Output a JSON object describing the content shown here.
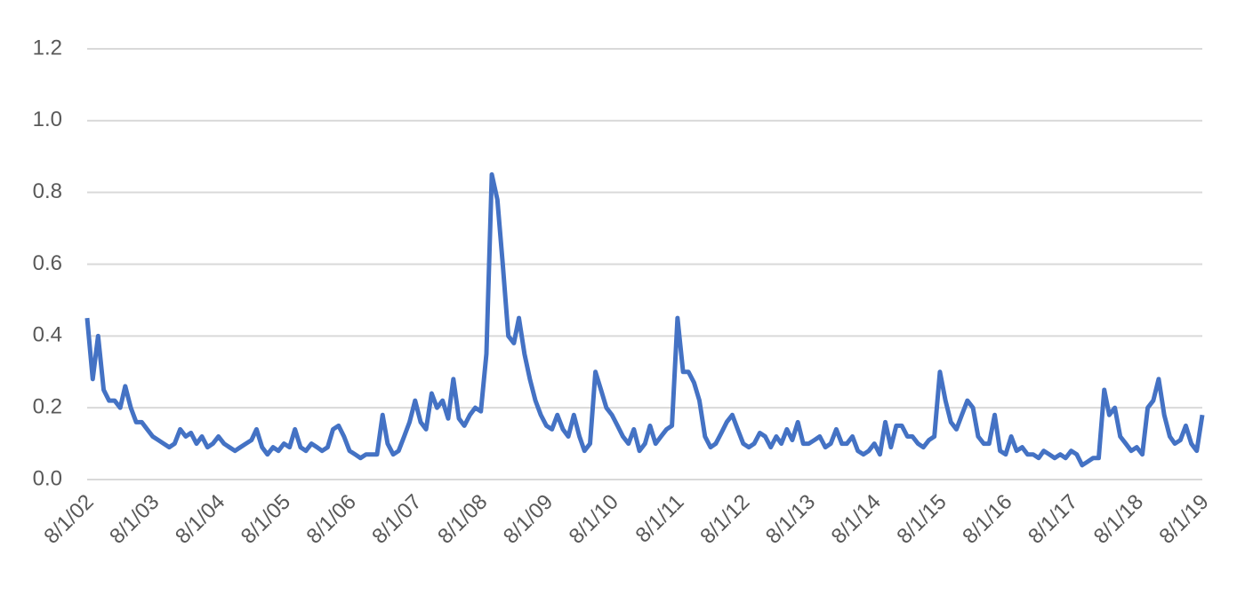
{
  "chart_data": {
    "type": "line",
    "x": [
      "8/1/02",
      "9/1/02",
      "10/1/02",
      "11/1/02",
      "12/1/02",
      "1/1/03",
      "2/1/03",
      "3/1/03",
      "4/1/03",
      "5/1/03",
      "6/1/03",
      "7/1/03",
      "8/1/03",
      "9/1/03",
      "10/1/03",
      "11/1/03",
      "12/1/03",
      "1/1/04",
      "2/1/04",
      "3/1/04",
      "4/1/04",
      "5/1/04",
      "6/1/04",
      "7/1/04",
      "8/1/04",
      "9/1/04",
      "10/1/04",
      "11/1/04",
      "12/1/04",
      "1/1/05",
      "2/1/05",
      "3/1/05",
      "4/1/05",
      "5/1/05",
      "6/1/05",
      "7/1/05",
      "8/1/05",
      "9/1/05",
      "10/1/05",
      "11/1/05",
      "12/1/05",
      "1/1/06",
      "2/1/06",
      "3/1/06",
      "4/1/06",
      "5/1/06",
      "6/1/06",
      "7/1/06",
      "8/1/06",
      "9/1/06",
      "10/1/06",
      "11/1/06",
      "12/1/06",
      "1/1/07",
      "2/1/07",
      "3/1/07",
      "4/1/07",
      "5/1/07",
      "6/1/07",
      "7/1/07",
      "8/1/07",
      "9/1/07",
      "10/1/07",
      "11/1/07",
      "12/1/07",
      "1/1/08",
      "2/1/08",
      "3/1/08",
      "4/1/08",
      "5/1/08",
      "6/1/08",
      "7/1/08",
      "8/1/08",
      "9/1/08",
      "10/1/08",
      "11/1/08",
      "12/1/08",
      "1/1/09",
      "2/1/09",
      "3/1/09",
      "4/1/09",
      "5/1/09",
      "6/1/09",
      "7/1/09",
      "8/1/09",
      "9/1/09",
      "10/1/09",
      "11/1/09",
      "12/1/09",
      "1/1/10",
      "2/1/10",
      "3/1/10",
      "4/1/10",
      "5/1/10",
      "6/1/10",
      "7/1/10",
      "8/1/10",
      "9/1/10",
      "10/1/10",
      "11/1/10",
      "12/1/10",
      "1/1/11",
      "2/1/11",
      "3/1/11",
      "4/1/11",
      "5/1/11",
      "6/1/11",
      "7/1/11",
      "8/1/11",
      "9/1/11",
      "10/1/11",
      "11/1/11",
      "12/1/11",
      "1/1/12",
      "2/1/12",
      "3/1/12",
      "4/1/12",
      "5/1/12",
      "6/1/12",
      "7/1/12",
      "8/1/12",
      "9/1/12",
      "10/1/12",
      "11/1/12",
      "12/1/12",
      "1/1/13",
      "2/1/13",
      "3/1/13",
      "4/1/13",
      "5/1/13",
      "6/1/13",
      "7/1/13",
      "8/1/13",
      "9/1/13",
      "10/1/13",
      "11/1/13",
      "12/1/13",
      "1/1/14",
      "2/1/14",
      "3/1/14",
      "4/1/14",
      "5/1/14",
      "6/1/14",
      "7/1/14",
      "8/1/14",
      "9/1/14",
      "10/1/14",
      "11/1/14",
      "12/1/14",
      "1/1/15",
      "2/1/15",
      "3/1/15",
      "4/1/15",
      "5/1/15",
      "6/1/15",
      "7/1/15",
      "8/1/15",
      "9/1/15",
      "10/1/15",
      "11/1/15",
      "12/1/15",
      "1/1/16",
      "2/1/16",
      "3/1/16",
      "4/1/16",
      "5/1/16",
      "6/1/16",
      "7/1/16",
      "8/1/16",
      "9/1/16",
      "10/1/16",
      "11/1/16",
      "12/1/16",
      "1/1/17",
      "2/1/17",
      "3/1/17",
      "4/1/17",
      "5/1/17",
      "6/1/17",
      "7/1/17",
      "8/1/17",
      "9/1/17",
      "10/1/17",
      "11/1/17",
      "12/1/17",
      "1/1/18",
      "2/1/18",
      "3/1/18",
      "4/1/18",
      "5/1/18",
      "6/1/18",
      "7/1/18",
      "8/1/18",
      "9/1/18",
      "10/1/18",
      "11/1/18",
      "12/1/18",
      "1/1/19",
      "2/1/19",
      "3/1/19",
      "4/1/19",
      "5/1/19",
      "6/1/19",
      "7/1/19",
      "8/1/19"
    ],
    "series": [
      {
        "color": "#4472c4",
        "values": [
          0.45,
          0.28,
          0.4,
          0.25,
          0.22,
          0.22,
          0.2,
          0.26,
          0.2,
          0.16,
          0.16,
          0.14,
          0.12,
          0.11,
          0.1,
          0.09,
          0.1,
          0.14,
          0.12,
          0.13,
          0.1,
          0.12,
          0.09,
          0.1,
          0.12,
          0.1,
          0.09,
          0.08,
          0.09,
          0.1,
          0.11,
          0.14,
          0.09,
          0.07,
          0.09,
          0.08,
          0.1,
          0.09,
          0.14,
          0.09,
          0.08,
          0.1,
          0.09,
          0.08,
          0.09,
          0.14,
          0.15,
          0.12,
          0.08,
          0.07,
          0.06,
          0.07,
          0.07,
          0.07,
          0.18,
          0.1,
          0.07,
          0.08,
          0.12,
          0.16,
          0.22,
          0.16,
          0.14,
          0.24,
          0.2,
          0.22,
          0.17,
          0.28,
          0.17,
          0.15,
          0.18,
          0.2,
          0.19,
          0.35,
          0.85,
          0.78,
          0.6,
          0.4,
          0.38,
          0.45,
          0.35,
          0.28,
          0.22,
          0.18,
          0.15,
          0.14,
          0.18,
          0.14,
          0.12,
          0.18,
          0.12,
          0.08,
          0.1,
          0.3,
          0.25,
          0.2,
          0.18,
          0.15,
          0.12,
          0.1,
          0.14,
          0.08,
          0.1,
          0.15,
          0.1,
          0.12,
          0.14,
          0.15,
          0.45,
          0.3,
          0.3,
          0.27,
          0.22,
          0.12,
          0.09,
          0.1,
          0.13,
          0.16,
          0.18,
          0.14,
          0.1,
          0.09,
          0.1,
          0.13,
          0.12,
          0.09,
          0.12,
          0.1,
          0.14,
          0.11,
          0.16,
          0.1,
          0.1,
          0.11,
          0.12,
          0.09,
          0.1,
          0.14,
          0.1,
          0.1,
          0.12,
          0.08,
          0.07,
          0.08,
          0.1,
          0.07,
          0.16,
          0.09,
          0.15,
          0.15,
          0.12,
          0.12,
          0.1,
          0.09,
          0.11,
          0.12,
          0.3,
          0.22,
          0.16,
          0.14,
          0.18,
          0.22,
          0.2,
          0.12,
          0.1,
          0.1,
          0.18,
          0.08,
          0.07,
          0.12,
          0.08,
          0.09,
          0.07,
          0.07,
          0.06,
          0.08,
          0.07,
          0.06,
          0.07,
          0.06,
          0.08,
          0.07,
          0.04,
          0.05,
          0.06,
          0.06,
          0.25,
          0.18,
          0.2,
          0.12,
          0.1,
          0.08,
          0.09,
          0.07,
          0.2,
          0.22,
          0.28,
          0.18,
          0.12,
          0.1,
          0.11,
          0.15,
          0.1,
          0.08,
          0.18
        ]
      }
    ],
    "xticks": [
      "8/1/02",
      "8/1/03",
      "8/1/04",
      "8/1/05",
      "8/1/06",
      "8/1/07",
      "8/1/08",
      "8/1/09",
      "8/1/10",
      "8/1/11",
      "8/1/12",
      "8/1/13",
      "8/1/14",
      "8/1/15",
      "8/1/16",
      "8/1/17",
      "8/1/18",
      "8/1/19"
    ],
    "ylim": [
      0,
      1.2
    ],
    "yticks": [
      {
        "value": 0,
        "label": "0.0"
      },
      0.2,
      0.4,
      0.6,
      0.8,
      {
        "value": 1,
        "label": "1.0"
      },
      1.2
    ],
    "grid": true
  }
}
